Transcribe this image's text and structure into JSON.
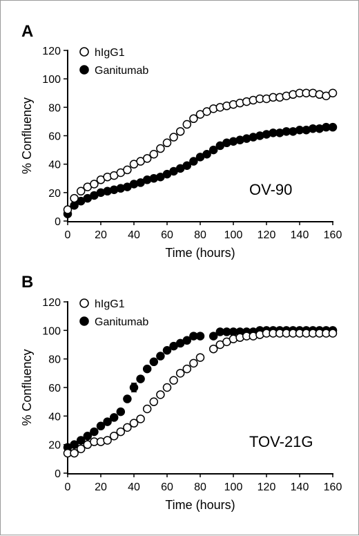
{
  "chart_data": [
    {
      "type": "scatter",
      "panel": "A",
      "annotation": "OV-90",
      "xlabel": "Time (hours)",
      "ylabel": "% Confluency",
      "xlim": [
        0,
        160
      ],
      "ylim": [
        0,
        120
      ],
      "xticks": [
        0,
        20,
        40,
        60,
        80,
        100,
        120,
        140,
        160
      ],
      "yticks": [
        0,
        20,
        40,
        60,
        80,
        100,
        120
      ],
      "grid": false,
      "legend": "top-left",
      "x": [
        0,
        4,
        8,
        12,
        16,
        20,
        24,
        28,
        32,
        36,
        40,
        44,
        48,
        52,
        56,
        60,
        64,
        68,
        72,
        76,
        80,
        84,
        88,
        92,
        96,
        100,
        104,
        108,
        112,
        116,
        120,
        124,
        128,
        132,
        136,
        140,
        144,
        148,
        152,
        156,
        160
      ],
      "series": [
        {
          "name": "hIgG1",
          "marker": "open-circle",
          "color": "#000000",
          "values": [
            8,
            16,
            21,
            24,
            26,
            29,
            31,
            32,
            34,
            36,
            40,
            42,
            44,
            47,
            51,
            55,
            59,
            63,
            68,
            72,
            75,
            77,
            79,
            80,
            81,
            82,
            83,
            84,
            85,
            86,
            86,
            87,
            87,
            88,
            89,
            90,
            90,
            90,
            89,
            88,
            90
          ]
        },
        {
          "name": "Ganitumab",
          "marker": "filled-circle",
          "color": "#000000",
          "values": [
            5,
            11,
            14,
            16,
            18,
            20,
            21,
            22,
            23,
            24,
            26,
            27,
            29,
            30,
            31,
            33,
            35,
            37,
            39,
            42,
            45,
            47,
            50,
            53,
            55,
            56,
            57,
            58,
            59,
            60,
            61,
            62,
            62,
            63,
            63,
            64,
            64,
            65,
            65,
            66,
            66
          ]
        }
      ]
    },
    {
      "type": "scatter",
      "panel": "B",
      "annotation": "TOV-21G",
      "xlabel": "Time (hours)",
      "ylabel": "% Confluency",
      "xlim": [
        0,
        160
      ],
      "ylim": [
        0,
        120
      ],
      "xticks": [
        0,
        20,
        40,
        60,
        80,
        100,
        120,
        140,
        160
      ],
      "yticks": [
        0,
        20,
        40,
        60,
        80,
        100,
        120
      ],
      "grid": false,
      "legend": "top-left",
      "series": [
        {
          "name": "hIgG1",
          "marker": "open-circle",
          "color": "#000000",
          "x": [
            0,
            4,
            8,
            12,
            16,
            20,
            24,
            28,
            32,
            36,
            40,
            44,
            48,
            52,
            56,
            60,
            64,
            68,
            72,
            76,
            80,
            88,
            92,
            96,
            100,
            104,
            108,
            112,
            116,
            120,
            124,
            128,
            132,
            136,
            140,
            144,
            148,
            152,
            156,
            160
          ],
          "values": [
            14,
            14,
            17,
            20,
            22,
            22,
            23,
            26,
            29,
            32,
            35,
            38,
            45,
            50,
            55,
            60,
            65,
            70,
            73,
            77,
            81,
            87,
            90,
            92,
            94,
            95,
            96,
            96,
            97,
            98,
            98,
            98,
            98,
            98,
            98,
            98,
            98,
            98,
            98,
            98
          ]
        },
        {
          "name": "Ganitumab",
          "marker": "filled-circle",
          "color": "#000000",
          "x": [
            0,
            4,
            8,
            12,
            16,
            20,
            24,
            28,
            32,
            36,
            40,
            44,
            48,
            52,
            56,
            60,
            64,
            68,
            72,
            76,
            80,
            88,
            92,
            96,
            100,
            104,
            108,
            112,
            116,
            120,
            124,
            128,
            132,
            136,
            140,
            144,
            148,
            152,
            156,
            160
          ],
          "values": [
            18,
            20,
            23,
            26,
            29,
            33,
            36,
            39,
            43,
            52,
            60,
            66,
            73,
            78,
            82,
            86,
            89,
            91,
            93,
            96,
            96,
            96,
            99,
            99,
            99,
            99,
            99,
            99,
            100,
            100,
            100,
            100,
            100,
            100,
            100,
            100,
            100,
            100,
            100,
            100
          ],
          "error": [
            0,
            0,
            0,
            0,
            0,
            0,
            0,
            0,
            2,
            0,
            3,
            0,
            0,
            0,
            0,
            0,
            0,
            0,
            0,
            0,
            0,
            0,
            0,
            0,
            0,
            0,
            0,
            0,
            0,
            0,
            0,
            0,
            0,
            0,
            0,
            0,
            0,
            0,
            0,
            0
          ]
        }
      ]
    }
  ]
}
